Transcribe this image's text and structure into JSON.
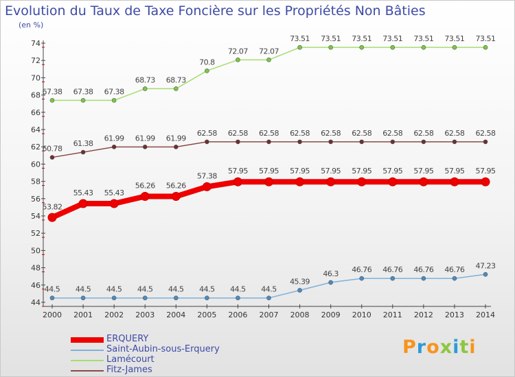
{
  "chart_data": {
    "type": "line",
    "title": "Evolution du Taux de Taxe Foncière sur les Propriétés Non Bâties",
    "ylabel": "(en %)",
    "x": [
      "2000",
      "2001",
      "2002",
      "2003",
      "2004",
      "2005",
      "2006",
      "2007",
      "2008",
      "2009",
      "2010",
      "2011",
      "2012",
      "2013",
      "2014"
    ],
    "ylim": [
      44,
      74
    ],
    "yticks": [
      44,
      46,
      48,
      50,
      52,
      54,
      56,
      58,
      60,
      62,
      64,
      66,
      68,
      70,
      72,
      74
    ],
    "grid": false,
    "legend_position": "bottom-left",
    "series": [
      {
        "name": "ERQUERY",
        "color": "#ee0000",
        "marker": "#ee0000",
        "values": [
          53.82,
          55.43,
          55.43,
          56.26,
          56.26,
          57.38,
          57.95,
          57.95,
          57.95,
          57.95,
          57.95,
          57.95,
          57.95,
          57.95,
          57.95
        ],
        "labels": [
          "53.82",
          "55.43",
          "55.43",
          "56.26",
          "56.26",
          "57.38",
          "57.95",
          "57.95",
          "57.95",
          "57.95",
          "57.95",
          "57.95",
          "57.95",
          "57.95",
          "57.95"
        ]
      },
      {
        "name": "Saint-Aubin-sous-Erquery",
        "color": "#7fb0d8",
        "marker": "#4a8cc4",
        "values": [
          44.5,
          44.5,
          44.5,
          44.5,
          44.5,
          44.5,
          44.5,
          44.5,
          45.39,
          46.3,
          46.76,
          46.76,
          46.76,
          46.76,
          47.23
        ],
        "labels": [
          "44.5",
          "44.5",
          "44.5",
          "44.5",
          "44.5",
          "44.5",
          "44.5",
          "44.5",
          "45.39",
          "46.3",
          "46.76",
          "46.76",
          "46.76",
          "46.76",
          "47.23"
        ]
      },
      {
        "name": "Lamécourt",
        "color": "#a6dc6e",
        "marker": "#7ac943",
        "values": [
          67.38,
          67.38,
          67.38,
          68.73,
          68.73,
          70.8,
          72.07,
          72.07,
          73.51,
          73.51,
          73.51,
          73.51,
          73.51,
          73.51,
          73.51
        ],
        "labels": [
          "67.38",
          "67.38",
          "67.38",
          "68.73",
          "68.73",
          "70.8",
          "72.07",
          "72.07",
          "73.51",
          "73.51",
          "73.51",
          "73.51",
          "73.51",
          "73.51",
          "73.51"
        ]
      },
      {
        "name": "Fitz-James",
        "color": "#8a4a4a",
        "marker": "#6e2f2f",
        "values": [
          60.78,
          61.38,
          61.99,
          61.99,
          61.99,
          62.58,
          62.58,
          62.58,
          62.58,
          62.58,
          62.58,
          62.58,
          62.58,
          62.58,
          62.58
        ],
        "labels": [
          "60.78",
          "61.38",
          "61.99",
          "61.99",
          "61.99",
          "62.58",
          "62.58",
          "62.58",
          "62.58",
          "62.58",
          "62.58",
          "62.58",
          "62.58",
          "62.58",
          "62.58"
        ]
      }
    ]
  },
  "logo": {
    "letters": [
      "P",
      "r",
      "o",
      "x",
      "i",
      "t",
      "i"
    ],
    "colors": [
      "#f7941d",
      "#2e9bd6",
      "#f7941d",
      "#8dc63f",
      "#2e9bd6",
      "#8dc63f",
      "#f7941d"
    ]
  }
}
